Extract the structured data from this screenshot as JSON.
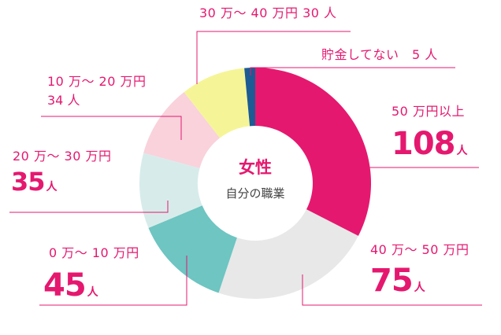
{
  "center": {
    "title": "女性",
    "subtitle": "自分の職業"
  },
  "colors": {
    "accent": "#e5186f",
    "s50plus": "#e5186f",
    "s40_50": "#e8e8e8",
    "s0_10": "#6ec5c2",
    "s20_30": "#d7ecea",
    "s10_20": "#f9d2dc",
    "s30_40": "#f5f597",
    "none": "#1d5b94",
    "leader": "#e5186f"
  },
  "labels": {
    "s50plus": {
      "category": "50 万円以上",
      "value": "108",
      "unit": "人"
    },
    "s40_50": {
      "category": "40 万〜 50 万円",
      "value": "75",
      "unit": "人"
    },
    "s0_10": {
      "category": "0 万〜 10 万円",
      "value": "45",
      "unit": "人"
    },
    "s20_30": {
      "category": "20 万〜 30 万円",
      "value": "35",
      "unit": "人"
    },
    "s10_20": {
      "category": "10 万〜 20 万円",
      "value": "34",
      "unit": "人"
    },
    "s30_40": {
      "line": "30 万〜 40 万円 30 人"
    },
    "none": {
      "line": "貯金してない　5 人"
    }
  },
  "chart_data": {
    "type": "pie",
    "donut": true,
    "center_label": "女性 自分の職業",
    "slices": [
      {
        "label": "50 万円以上",
        "value": 108
      },
      {
        "label": "40 万〜 50 万円",
        "value": 75
      },
      {
        "label": "0 万〜 10 万円",
        "value": 45
      },
      {
        "label": "20 万〜 30 万円",
        "value": 35
      },
      {
        "label": "10 万〜 20 万円",
        "value": 34
      },
      {
        "label": "30 万〜 40 万円",
        "value": 30
      },
      {
        "label": "貯金してない",
        "value": 5
      }
    ],
    "colors": [
      "#e5186f",
      "#e8e8e8",
      "#6ec5c2",
      "#d7ecea",
      "#f9d2dc",
      "#f5f597",
      "#1d5b94"
    ],
    "unit": "人"
  }
}
